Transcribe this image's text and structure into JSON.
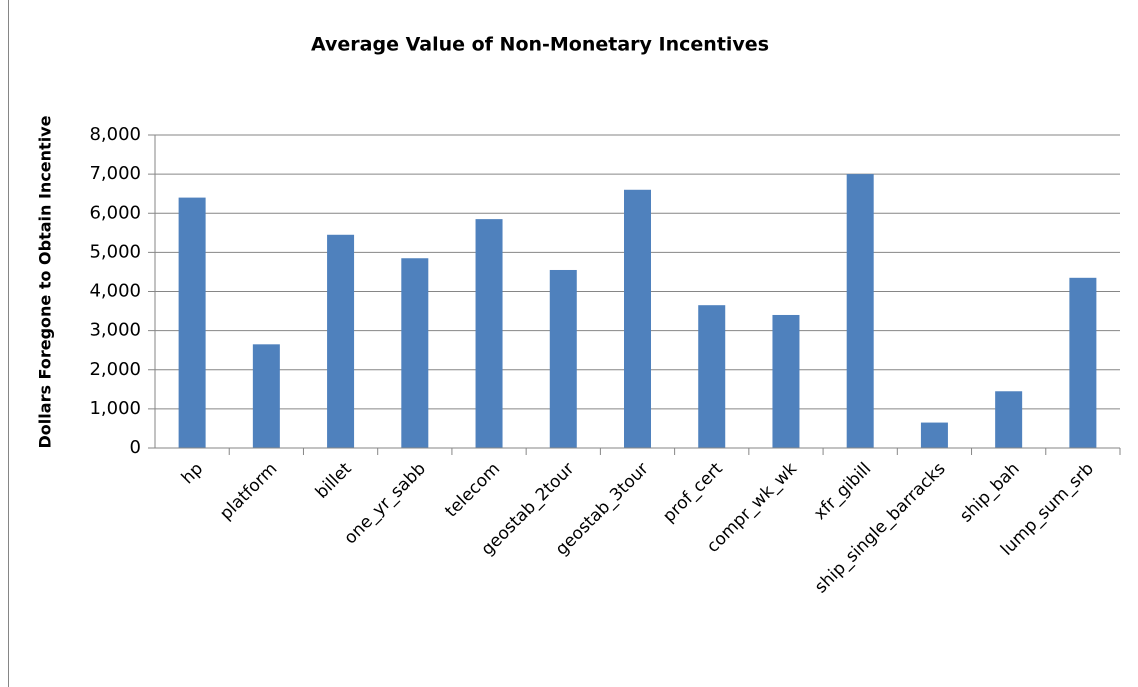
{
  "chart_data": {
    "type": "bar",
    "title": "Average Value of Non-Monetary Incentives",
    "y_label": "Dollars Foregone to Obtain Incentive",
    "categories": [
      "hp",
      "platform",
      "billet",
      "one_yr_sabb",
      "telecom",
      "geostab_2tour",
      "geostab_3tour",
      "prof_cert",
      "compr_wk_wk",
      "xfr_gibill",
      "ship_single_barracks",
      "ship_bah",
      "lump_sum_srb"
    ],
    "values": [
      6400,
      2650,
      5450,
      4850,
      5850,
      4550,
      6600,
      3650,
      3400,
      7000,
      650,
      1450,
      4350
    ],
    "color": "#4f81bd",
    "ylim": [
      0,
      8000
    ],
    "yticks": [
      0,
      {
        "value": 1000,
        "label": "1,000"
      },
      {
        "value": 2000,
        "label": "2,000"
      },
      {
        "value": 3000,
        "label": "3,000"
      },
      {
        "value": 4000,
        "label": "4,000"
      },
      {
        "value": 5000,
        "label": "5,000"
      },
      {
        "value": 6000,
        "label": "6,000"
      },
      {
        "value": 7000,
        "label": "7,000"
      },
      {
        "value": 8000,
        "label": "8,000"
      }
    ],
    "grid": true
  }
}
